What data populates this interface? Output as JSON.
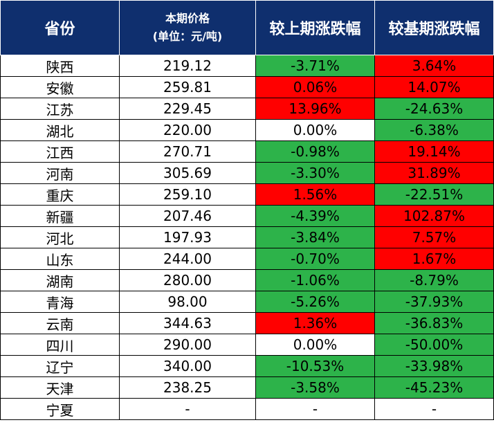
{
  "header": {
    "province": "省份",
    "price_line1": "本期价格",
    "price_line2": "(单位：元/吨)",
    "prev_change": "较上期涨跌幅",
    "base_change": "较基期涨跌幅"
  },
  "colors": {
    "up": "#ff0000",
    "down": "#2db34a",
    "header_bg": "#0f2f6e"
  },
  "rows": [
    {
      "province": "陕西",
      "price": "219.12",
      "prev": "-3.71%",
      "base": "3.64%"
    },
    {
      "province": "安徽",
      "price": "259.81",
      "prev": "0.06%",
      "base": "14.07%"
    },
    {
      "province": "江苏",
      "price": "229.45",
      "prev": "13.96%",
      "base": "-24.63%"
    },
    {
      "province": "湖北",
      "price": "220.00",
      "prev": "0.00%",
      "base": "-6.38%"
    },
    {
      "province": "江西",
      "price": "270.71",
      "prev": "-0.98%",
      "base": "19.14%"
    },
    {
      "province": "河南",
      "price": "305.69",
      "prev": "-3.30%",
      "base": "31.89%"
    },
    {
      "province": "重庆",
      "price": "259.10",
      "prev": "1.56%",
      "base": "-22.51%"
    },
    {
      "province": "新疆",
      "price": "207.46",
      "prev": "-4.39%",
      "base": "102.87%"
    },
    {
      "province": "河北",
      "price": "197.93",
      "prev": "-3.84%",
      "base": "7.57%"
    },
    {
      "province": "山东",
      "price": "244.00",
      "prev": "-0.70%",
      "base": "1.67%"
    },
    {
      "province": "湖南",
      "price": "280.00",
      "prev": "-1.06%",
      "base": "-8.79%"
    },
    {
      "province": "青海",
      "price": "98.00",
      "prev": "-5.26%",
      "base": "-37.93%"
    },
    {
      "province": "云南",
      "price": "344.63",
      "prev": "1.36%",
      "base": "-36.83%"
    },
    {
      "province": "四川",
      "price": "290.00",
      "prev": "0.00%",
      "base": "-50.00%"
    },
    {
      "province": "辽宁",
      "price": "340.00",
      "prev": "-10.53%",
      "base": "-33.98%"
    },
    {
      "province": "天津",
      "price": "238.25",
      "prev": "-3.58%",
      "base": "-45.23%"
    },
    {
      "province": "宁夏",
      "price": "-",
      "prev": "-",
      "base": "-"
    }
  ]
}
